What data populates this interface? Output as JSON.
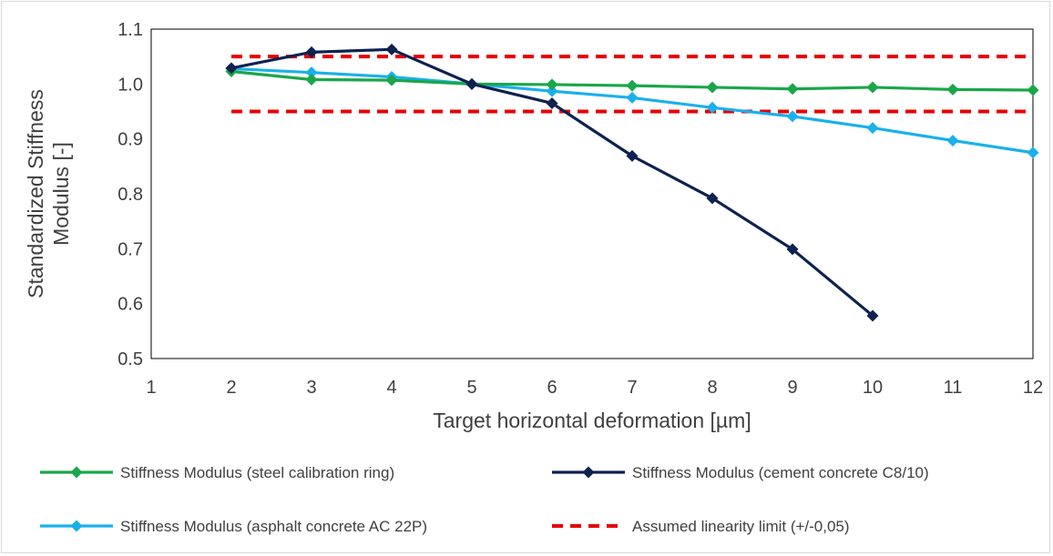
{
  "chart_data": {
    "type": "line",
    "title": "",
    "xlabel": "Target horizontal deformation [µm]",
    "ylabel": "Standardized Stiffness Modulus [-]",
    "ylabel_lines": [
      "Standardized Stiffness",
      "Modulus [-]"
    ],
    "xlim": [
      1,
      12
    ],
    "ylim": [
      0.5,
      1.1
    ],
    "x_ticks": [
      "1",
      "2",
      "3",
      "4",
      "5",
      "6",
      "7",
      "8",
      "9",
      "10",
      "11",
      "12"
    ],
    "y_ticks": [
      "0.5",
      "0.6",
      "0.7",
      "0.8",
      "0.9",
      "1.0",
      "1.1"
    ],
    "grid": false,
    "legend_position": "bottom",
    "series": [
      {
        "name": "Stiffness Modulus (steel calibration ring)",
        "color": "#1aa64a",
        "marker": "diamond",
        "x": [
          2,
          3,
          4,
          5,
          6,
          7,
          8,
          9,
          10,
          11,
          12
        ],
        "values": [
          1.023,
          1.008,
          1.007,
          1.0,
          0.999,
          0.997,
          0.994,
          0.991,
          0.994,
          0.99,
          0.989
        ]
      },
      {
        "name": "Stiffness Modulus (cement concrete C8/10)",
        "color": "#0e2250",
        "marker": "diamond",
        "x": [
          2,
          3,
          4,
          5,
          6,
          7,
          8,
          9,
          10
        ],
        "values": [
          1.029,
          1.058,
          1.063,
          1.0,
          0.965,
          0.869,
          0.792,
          0.699,
          0.578
        ]
      },
      {
        "name": "Stiffness Modulus (asphalt concrete AC 22P)",
        "color": "#1ab0ec",
        "marker": "diamond",
        "x": [
          2,
          3,
          4,
          5,
          6,
          7,
          8,
          9,
          10,
          11,
          12
        ],
        "values": [
          1.028,
          1.021,
          1.013,
          1.0,
          0.987,
          0.975,
          0.957,
          0.941,
          0.92,
          0.897,
          0.875
        ]
      },
      {
        "name": "Assumed linearity limit (+/-0,05)",
        "color": "#e60000",
        "marker": "none",
        "dashed": true,
        "lines": [
          1.05,
          0.95
        ],
        "x_range": [
          2,
          12
        ]
      }
    ]
  }
}
